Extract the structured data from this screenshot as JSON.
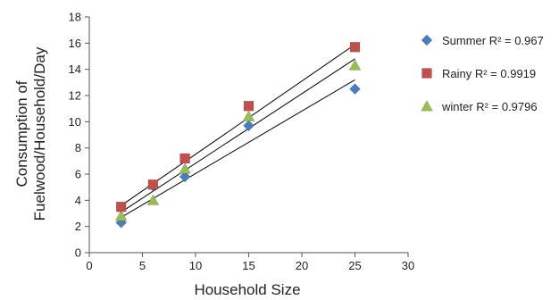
{
  "chart_data": {
    "type": "scatter",
    "xlabel": "Household Size",
    "ylabel_lines": [
      "Consumption of",
      "Fuelwood/Household/Day"
    ],
    "xlim": [
      0,
      30
    ],
    "ylim": [
      0,
      18
    ],
    "x_ticks": [
      "0",
      "5",
      "10",
      "15",
      "20",
      "25",
      "30"
    ],
    "y_ticks": [
      "0",
      "2",
      "4",
      "6",
      "8",
      "10",
      "12",
      "14",
      "16",
      "18"
    ],
    "grid": false,
    "legend_position": "right",
    "trendlines": true,
    "series": [
      {
        "name": "Summer R² = 0.967",
        "marker": "diamond",
        "color": "#4a7ebb",
        "x": [
          3,
          6,
          9,
          15,
          25
        ],
        "y": [
          2.3,
          5.1,
          5.8,
          9.7,
          12.5
        ],
        "trend_y_at_x": [
          [
            3,
            2.7
          ],
          [
            25,
            13.2
          ]
        ]
      },
      {
        "name": "Rainy R² = 0.9919",
        "marker": "square",
        "color": "#c0504d",
        "x": [
          3,
          6,
          9,
          15,
          25
        ],
        "y": [
          3.5,
          5.2,
          7.2,
          11.2,
          15.7
        ],
        "trend_y_at_x": [
          [
            3,
            3.6
          ],
          [
            25,
            15.9
          ]
        ]
      },
      {
        "name": "winter R² = 0.9796",
        "marker": "triangle",
        "color": "#9bbb59",
        "x": [
          3,
          6,
          9,
          15,
          25
        ],
        "y": [
          2.8,
          4.0,
          6.4,
          10.4,
          14.3
        ],
        "trend_y_at_x": [
          [
            3,
            3.1
          ],
          [
            25,
            14.8
          ]
        ]
      }
    ]
  }
}
